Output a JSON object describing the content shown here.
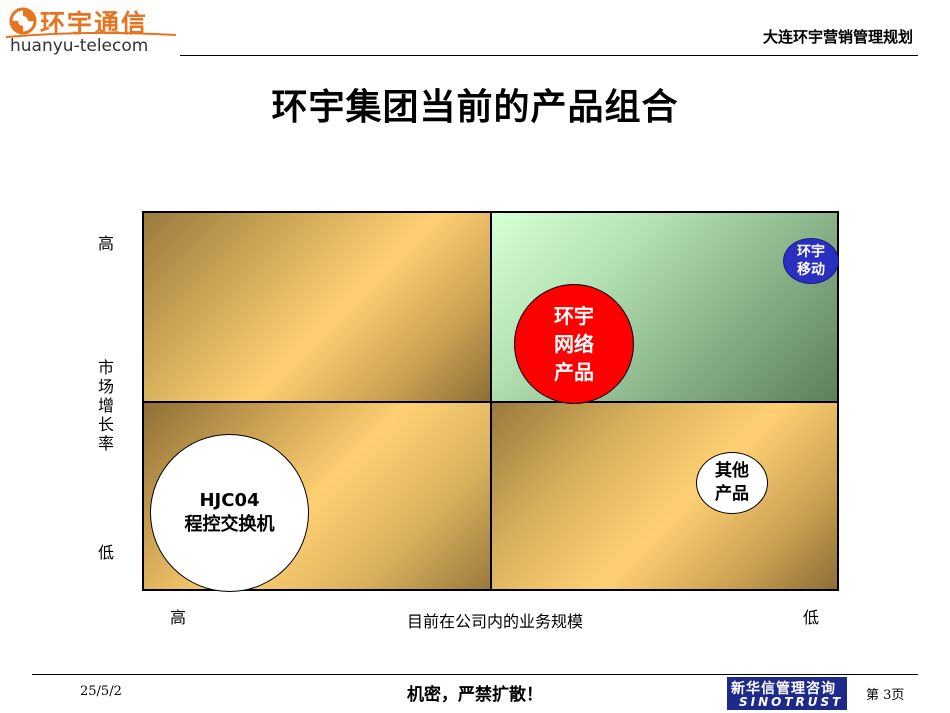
{
  "header": {
    "logo_cn": "环宇通信",
    "logo_en": "huanyu-telecom",
    "title": "大连环宇营销管理规划"
  },
  "main_title": "环宇集团当前的产品组合",
  "matrix": {
    "y_axis": {
      "label": "市场增长率",
      "high": "高",
      "low": "低"
    },
    "x_axis": {
      "label": "目前在公司内的业务规模",
      "high": "高",
      "low": "低"
    },
    "bubbles": {
      "network": "环宇\n网络\n产品",
      "mobile": "环宇\n移动",
      "other": "其他\n产品",
      "hjc": "HJC04\n程控交换机"
    }
  },
  "colors": {
    "gold": "#ffd073",
    "green": "#8fb98f",
    "red": "#ff0000",
    "blue": "#2b2fbf",
    "brand": "#1d2a8a",
    "logo": "#e8731e"
  },
  "footer": {
    "date": "25/5/2",
    "confidential": "机密，严禁扩散！",
    "brand_cn": "新华信管理咨询",
    "brand_en": "SINOTRUST",
    "page": "第  3页"
  }
}
